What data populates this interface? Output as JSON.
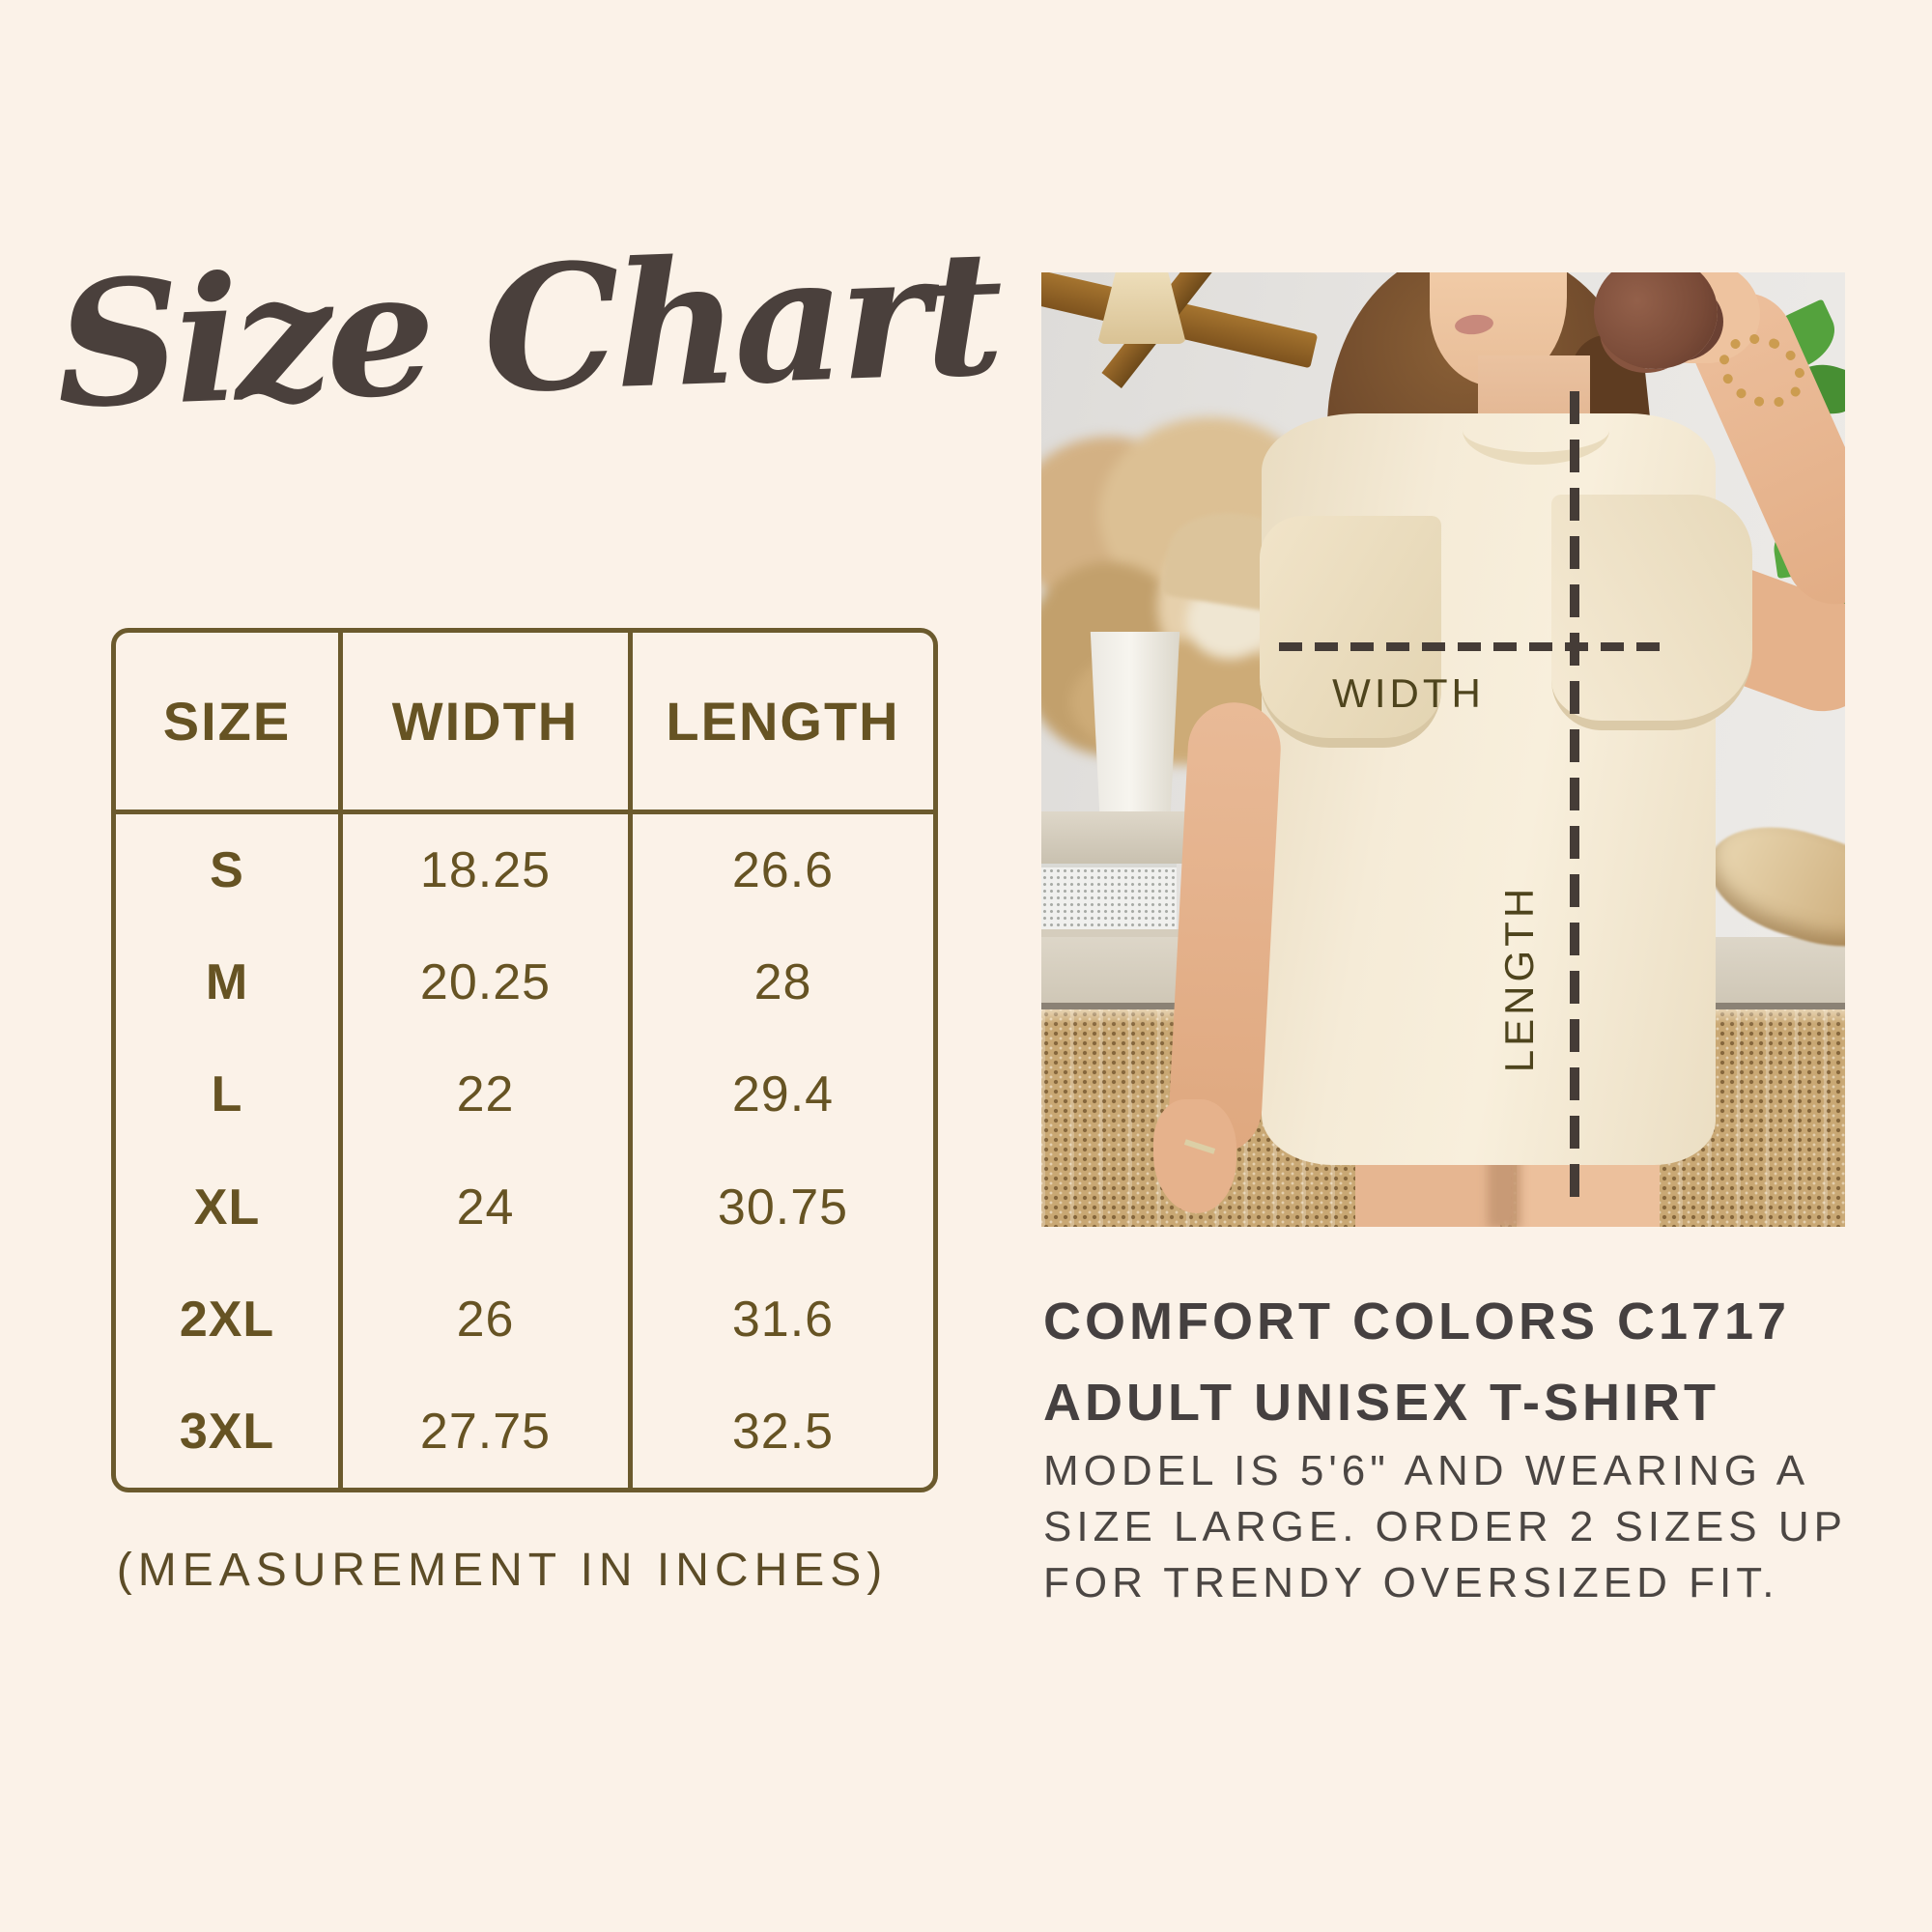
{
  "title": {
    "text": "Size Chart",
    "color": "#4a403c"
  },
  "size_table": {
    "headers": [
      "SIZE",
      "WIDTH",
      "LENGTH"
    ],
    "rows": [
      [
        "S",
        "18.25",
        "26.6"
      ],
      [
        "M",
        "20.25",
        "28"
      ],
      [
        "L",
        "22",
        "29.4"
      ],
      [
        "XL",
        "24",
        "30.75"
      ],
      [
        "2XL",
        "26",
        "31.6"
      ],
      [
        "3XL",
        "27.75",
        "32.5"
      ]
    ],
    "footnote": "(MEASUREMENT IN INCHES)",
    "border_color": "#6b5a2d",
    "text_color": "#665323"
  },
  "photo": {
    "width_label": "WIDTH",
    "length_label": "LENGTH",
    "label_color": "#4e441d",
    "dash_color": "#453c37"
  },
  "product": {
    "heading_line1": "COMFORT COLORS C1717",
    "heading_line2": "ADULT UNISEX T-SHIRT",
    "body_line1": "MODEL IS 5'6\" AND WEARING A",
    "body_line2": "SIZE LARGE. ORDER 2 SIZES UP",
    "body_line3": "FOR TRENDY OVERSIZED FIT."
  },
  "colors": {
    "background": "#fbf2e8",
    "shirt": "#f5ebd7",
    "rattan": "#c9a874",
    "wall": "#e7e5e2"
  },
  "chart_data": {
    "type": "table",
    "title": "Size Chart",
    "columns": [
      "SIZE",
      "WIDTH",
      "LENGTH"
    ],
    "rows": [
      {
        "size": "S",
        "width": 18.25,
        "length": 26.6
      },
      {
        "size": "M",
        "width": 20.25,
        "length": 28
      },
      {
        "size": "L",
        "width": 22,
        "length": 29.4
      },
      {
        "size": "XL",
        "width": 24,
        "length": 30.75
      },
      {
        "size": "2XL",
        "width": 26,
        "length": 31.6
      },
      {
        "size": "3XL",
        "width": 27.75,
        "length": 32.5
      }
    ],
    "units": "inches",
    "note": "(MEASUREMENT IN INCHES)"
  }
}
